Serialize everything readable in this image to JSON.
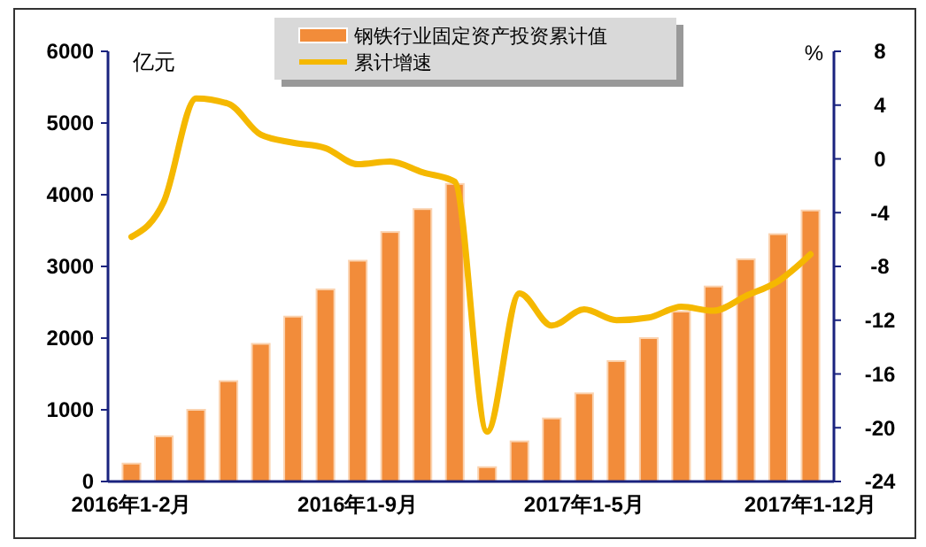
{
  "chart_data": {
    "type": "bar",
    "categories": [
      "2016年1-2月",
      null,
      null,
      null,
      null,
      null,
      null,
      "2016年1-9月",
      null,
      null,
      null,
      null,
      null,
      null,
      "2017年1-5月",
      null,
      null,
      null,
      null,
      null,
      null,
      "2017年1-12月"
    ],
    "series": [
      {
        "name": "钢铁行业固定资产投资累计值",
        "color": "#f28c3a",
        "values": [
          250,
          630,
          1000,
          1400,
          1920,
          2300,
          2680,
          3080,
          3480,
          3800,
          4150,
          200,
          560,
          880,
          1230,
          1680,
          2000,
          2370,
          2720,
          3100,
          3450,
          3780
        ]
      },
      {
        "name": "累计增速",
        "type": "line",
        "axis": "y2",
        "color": "#f5b800",
        "values": [
          -5.8,
          -3.2,
          4.5,
          4.1,
          1.8,
          1.2,
          0.8,
          -0.4,
          -0.2,
          -1.0,
          -1.7,
          -20.3,
          -10.0,
          -12.4,
          -11.2,
          -12.0,
          -11.8,
          -11.0,
          -11.3,
          -10.2,
          -9.1,
          -7.1
        ]
      }
    ],
    "ylabel": "亿元",
    "y2label": "%",
    "ylim": [
      0,
      6000
    ],
    "yticks": [
      0,
      1000,
      2000,
      3000,
      4000,
      5000,
      6000
    ],
    "y2lim": [
      -24,
      8
    ],
    "y2ticks": [
      -24,
      -20,
      -16,
      -12,
      -8,
      -4,
      0,
      4,
      8
    ],
    "legend": "top",
    "grid": false
  }
}
